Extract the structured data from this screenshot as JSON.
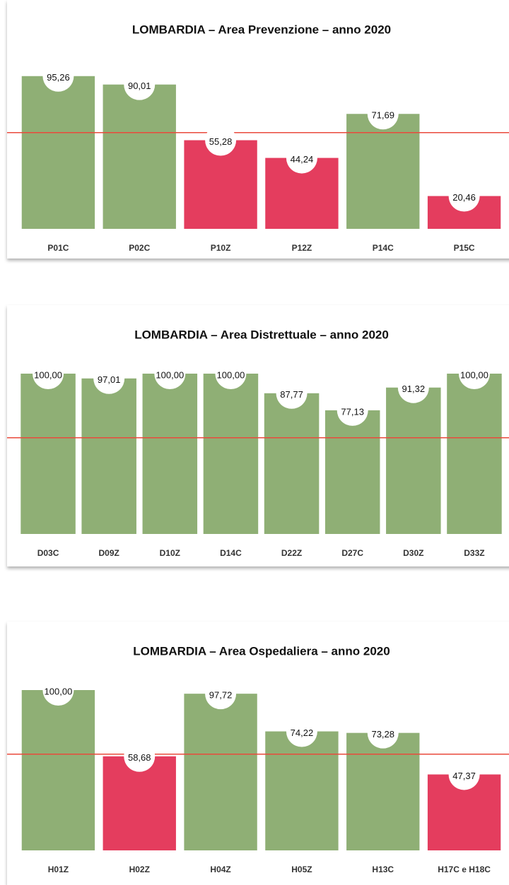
{
  "chart_data": [
    {
      "type": "bar",
      "title": "LOMBARDIA  – Area Prevenzione – anno 2020",
      "categories": [
        "P01C",
        "P02C",
        "P10Z",
        "P12Z",
        "P14C",
        "P15C"
      ],
      "values": [
        95.26,
        90.01,
        55.28,
        44.24,
        71.69,
        20.46
      ],
      "value_labels": [
        "95,26",
        "90,01",
        "55,28",
        "44,24",
        "71,69",
        "20,46"
      ],
      "colors": [
        "#8faf75",
        "#8faf75",
        "#e43d5e",
        "#e43d5e",
        "#8faf75",
        "#e43d5e"
      ],
      "threshold": 60,
      "threshold_color": "#ea4a3c",
      "ylim": [
        0,
        100
      ]
    },
    {
      "type": "bar",
      "title": "LOMBARDIA  – Area Distrettuale – anno 2020",
      "categories": [
        "D03C",
        "D09Z",
        "D10Z",
        "D14C",
        "D22Z",
        "D27C",
        "D30Z",
        "D33Z"
      ],
      "values": [
        100.0,
        97.01,
        100.0,
        100.0,
        87.77,
        77.13,
        91.32,
        100.0
      ],
      "value_labels": [
        "100,00",
        "97,01",
        "100,00",
        "100,00",
        "87,77",
        "77,13",
        "91,32",
        "100,00"
      ],
      "colors": [
        "#8faf75",
        "#8faf75",
        "#8faf75",
        "#8faf75",
        "#8faf75",
        "#8faf75",
        "#8faf75",
        "#8faf75"
      ],
      "threshold": 60,
      "threshold_color": "#ea4a3c",
      "ylim": [
        0,
        100
      ]
    },
    {
      "type": "bar",
      "title": "LOMBARDIA  – Area Ospedaliera – anno 2020",
      "categories": [
        "H01Z",
        "H02Z",
        "H04Z",
        "H05Z",
        "H13C",
        "H17C e H18C"
      ],
      "values": [
        100.0,
        58.68,
        97.72,
        74.22,
        73.28,
        47.37
      ],
      "value_labels": [
        "100,00",
        "58,68",
        "97,72",
        "74,22",
        "73,28",
        "47,37"
      ],
      "colors": [
        "#8faf75",
        "#e43d5e",
        "#8faf75",
        "#8faf75",
        "#8faf75",
        "#e43d5e"
      ],
      "threshold": 60,
      "threshold_color": "#ea4a3c",
      "ylim": [
        0,
        100
      ]
    }
  ]
}
